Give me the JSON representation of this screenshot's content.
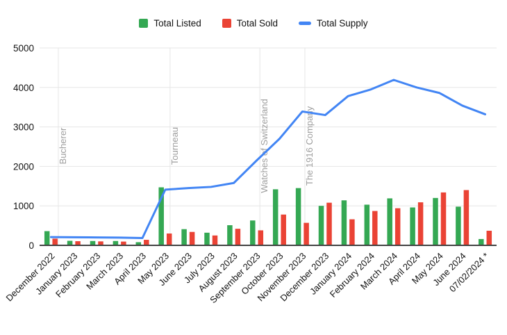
{
  "legend": {
    "items": [
      {
        "label": "Total Listed",
        "color": "#34A853",
        "marker": "square"
      },
      {
        "label": "Total Sold",
        "color": "#EA4335",
        "marker": "square"
      },
      {
        "label": "Total Supply",
        "color": "#4285F4",
        "marker": "line"
      }
    ]
  },
  "colors": {
    "listed": "#34A853",
    "sold": "#EA4335",
    "supply": "#4285F4",
    "grid": "#e6e6e6",
    "axis_line": "#424242",
    "annotation_text": "#9e9e9e",
    "tick_text": "#111111"
  },
  "chart_data": {
    "type": "bar",
    "subtype": "grouped-bars-with-line",
    "title": "",
    "xlabel": "",
    "ylabel": "",
    "ylim": [
      0,
      5000
    ],
    "ytick_step": 1000,
    "yticks": [
      "0",
      "1000",
      "2000",
      "3000",
      "4000",
      "5000"
    ],
    "grid": "horizontal",
    "legend_position": "top",
    "categories": [
      "December 2022",
      "January 2023",
      "February 2023",
      "March 2023",
      "April 2023",
      "May 2023",
      "June 2023",
      "July 2023",
      "August 2023",
      "September 2023",
      "October 2023",
      "November 2023",
      "December 2023",
      "January 2024",
      "February 2024",
      "March 2024",
      "April 2024",
      "May 2024",
      "June 2024",
      "07/02/2024 *"
    ],
    "series": [
      {
        "name": "Total Listed",
        "type": "bar",
        "color": "#34A853",
        "values": [
          360,
          115,
          110,
          110,
          80,
          1470,
          410,
          320,
          510,
          630,
          1420,
          1450,
          1000,
          1140,
          1030,
          1190,
          960,
          1200,
          980,
          160
        ]
      },
      {
        "name": "Total Sold",
        "type": "bar",
        "color": "#EA4335",
        "values": [
          170,
          105,
          100,
          95,
          140,
          300,
          340,
          250,
          420,
          380,
          780,
          570,
          1080,
          660,
          870,
          940,
          1090,
          1340,
          1400,
          370
        ]
      },
      {
        "name": "Total Supply",
        "type": "line",
        "color": "#4285F4",
        "values": [
          210,
          205,
          200,
          195,
          185,
          1410,
          1450,
          1480,
          1580,
          2150,
          2700,
          3390,
          3300,
          3780,
          3950,
          4190,
          4000,
          3860,
          3540,
          3320
        ]
      }
    ],
    "annotations": [
      {
        "label": "Bucherer",
        "index": 0.32
      },
      {
        "label": "Tourneau",
        "index": 5.21
      },
      {
        "label": "Watches of Switzerland",
        "index": 9.14
      },
      {
        "label": "The 1916 Company",
        "index": 11.11
      }
    ]
  }
}
